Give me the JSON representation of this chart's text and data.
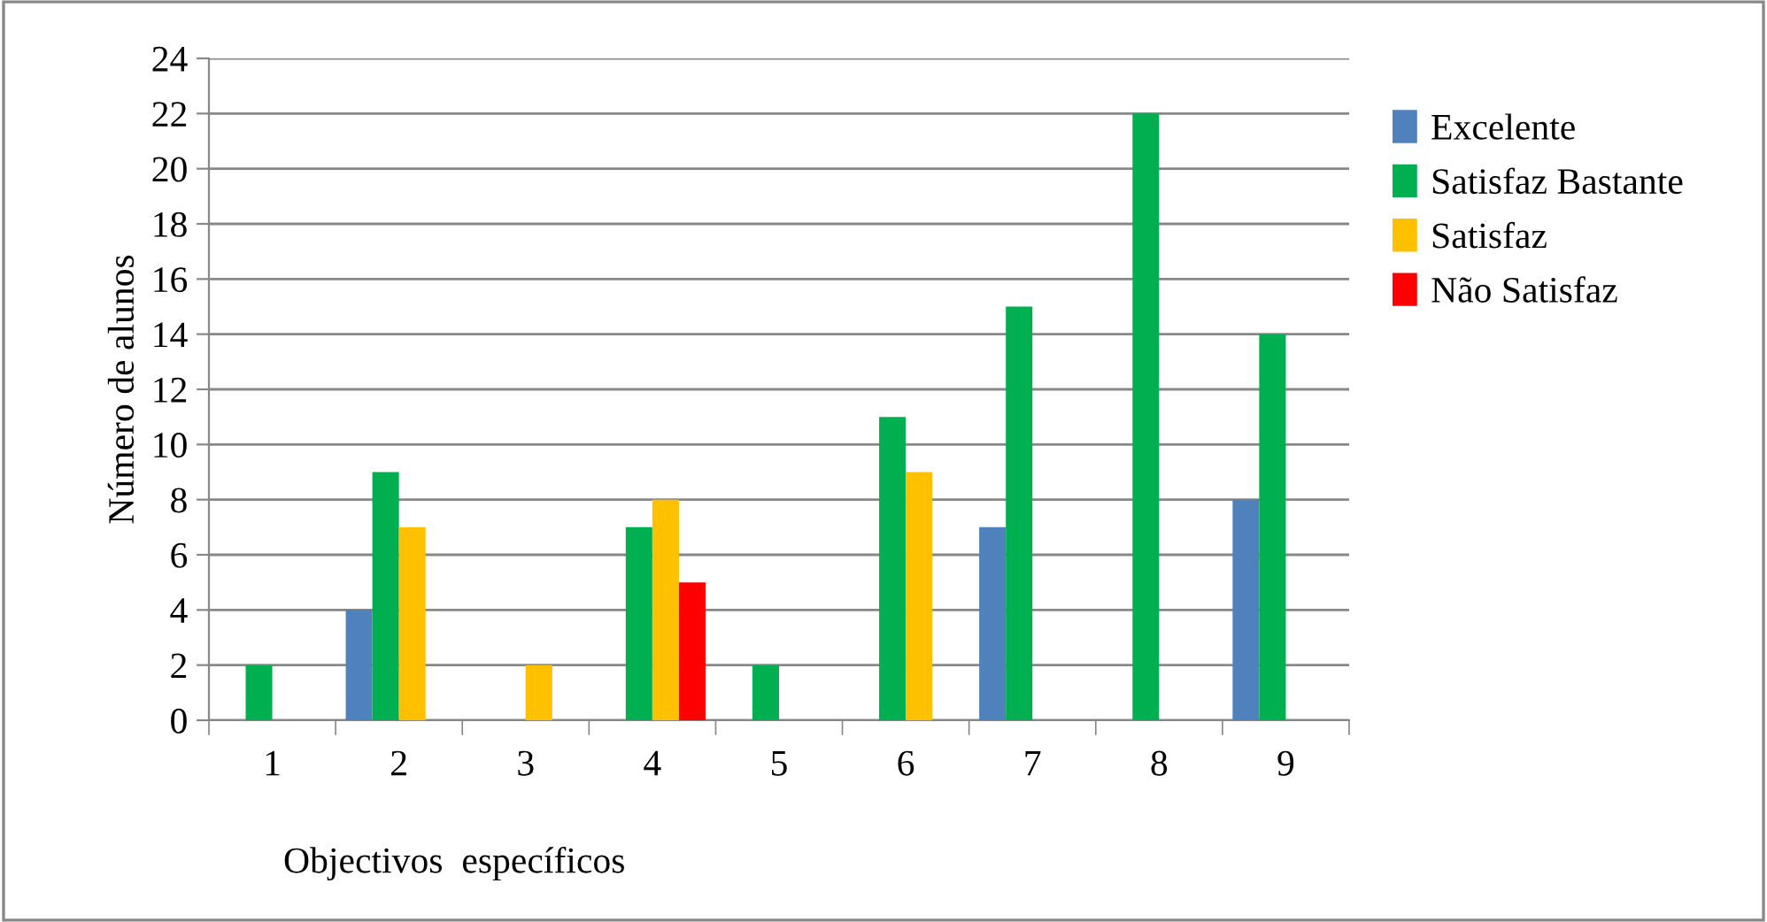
{
  "chart_data": {
    "type": "bar",
    "xlabel": "Objectivos  específicos",
    "ylabel": "Número de alunos",
    "categories": [
      "1",
      "2",
      "3",
      "4",
      "5",
      "6",
      "7",
      "8",
      "9"
    ],
    "series": [
      {
        "name": "Excelente",
        "color": "#4f81bd",
        "values": [
          0,
          4,
          0,
          0,
          0,
          0,
          7,
          0,
          8
        ]
      },
      {
        "name": "Satisfaz Bastante",
        "color": "#00b050",
        "values": [
          2,
          9,
          0,
          7,
          2,
          11,
          15,
          22,
          14
        ]
      },
      {
        "name": "Satisfaz",
        "color": "#ffc000",
        "values": [
          0,
          7,
          2,
          8,
          0,
          9,
          0,
          0,
          0
        ]
      },
      {
        "name": "Não Satisfaz",
        "color": "#ff0000",
        "values": [
          0,
          0,
          0,
          5,
          0,
          0,
          0,
          0,
          0
        ]
      }
    ],
    "ylim": [
      0,
      24
    ],
    "yticks": [
      0,
      2,
      4,
      6,
      8,
      10,
      12,
      14,
      16,
      18,
      20,
      22,
      24
    ],
    "grid": "y",
    "legend": "right"
  }
}
